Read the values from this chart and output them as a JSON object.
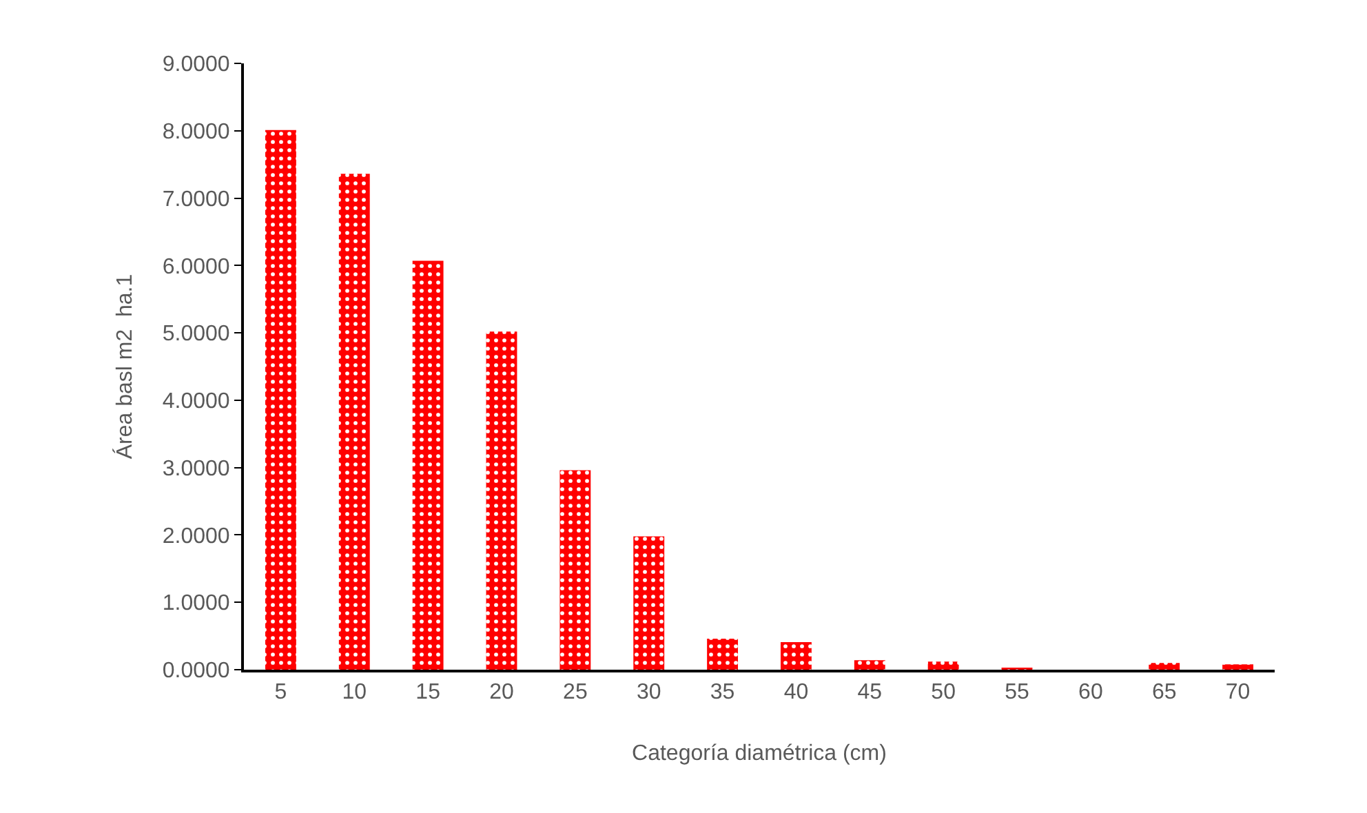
{
  "chart_data": {
    "type": "bar",
    "xlabel": "Categoría diamétrica (cm)",
    "ylabel": "Área basl m2  ha.1",
    "categories": [
      "5",
      "10",
      "15",
      "20",
      "25",
      "30",
      "35",
      "40",
      "45",
      "50",
      "55",
      "60",
      "65",
      "70"
    ],
    "values": [
      8.01,
      7.36,
      6.07,
      5.02,
      2.96,
      1.98,
      0.46,
      0.41,
      0.14,
      0.12,
      0.03,
      0,
      0.1,
      0.08
    ],
    "color": "#ff0000",
    "ylim": [
      0,
      9
    ],
    "yticks": [
      {
        "value": 0,
        "label": "0.0000"
      },
      {
        "value": 1,
        "label": "1.0000"
      },
      {
        "value": 2,
        "label": "2.0000"
      },
      {
        "value": 3,
        "label": "3.0000"
      },
      {
        "value": 4,
        "label": "4.0000"
      },
      {
        "value": 5,
        "label": "5.0000"
      },
      {
        "value": 6,
        "label": "6.0000"
      },
      {
        "value": 7,
        "label": "7.0000"
      },
      {
        "value": 8,
        "label": "8.0000"
      },
      {
        "value": 9,
        "label": "9.0000"
      }
    ],
    "grid": false
  }
}
